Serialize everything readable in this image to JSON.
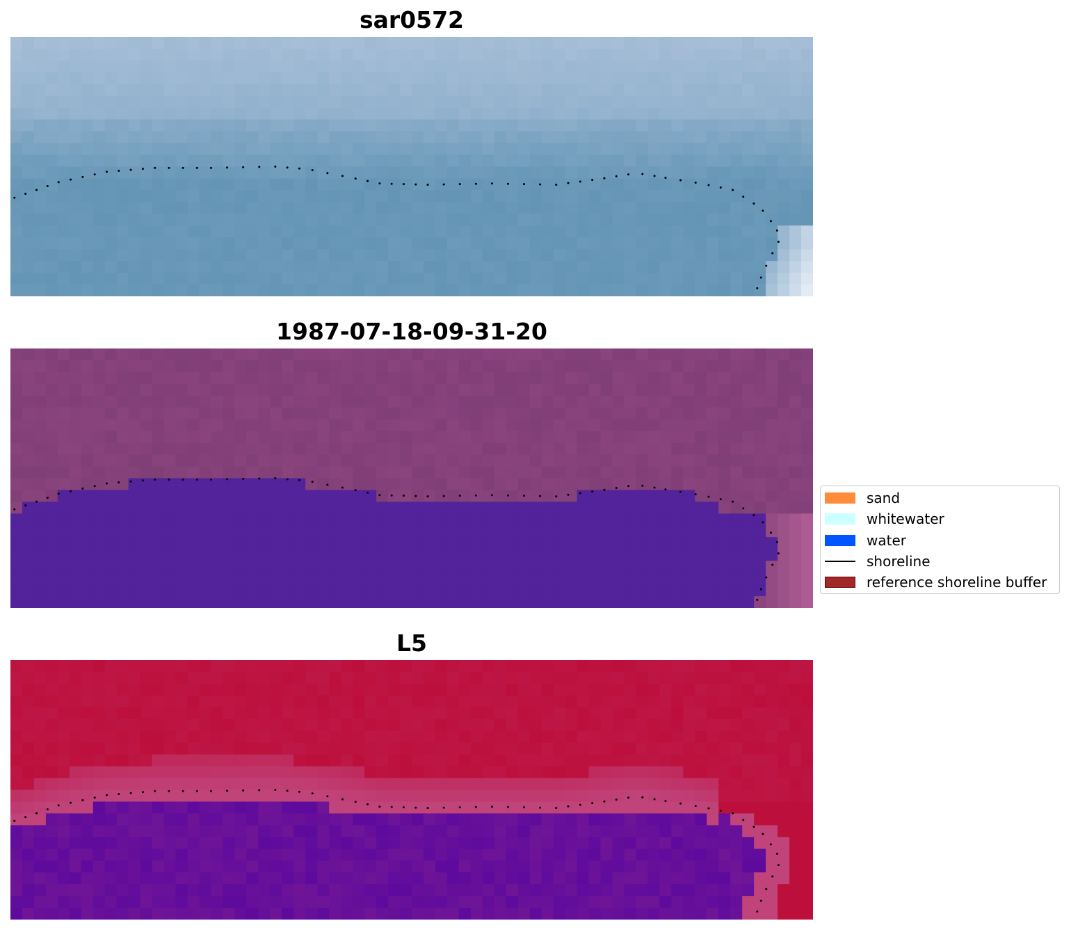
{
  "chart_data": {
    "type": "heatmap",
    "panels": [
      {
        "title": "sar0572",
        "kind": "rgb_composite",
        "palette": [
          "#8fb0cc",
          "#6495b5"
        ]
      },
      {
        "title": "1987-07-18-09-31-20",
        "kind": "classified_overlay",
        "palette": [
          "#8a447d",
          "#52239a"
        ]
      },
      {
        "title": "L5",
        "kind": "index_map",
        "palette": [
          "#bd0f3c",
          "#5d0a9d"
        ]
      }
    ],
    "legend": {
      "placement": "center-right",
      "items": [
        {
          "label": "sand",
          "type": "patch",
          "color": "#ff8c3a"
        },
        {
          "label": "whitewater",
          "type": "patch",
          "color": "#ccffff"
        },
        {
          "label": "water",
          "type": "patch",
          "color": "#0055ff"
        },
        {
          "label": "shoreline",
          "type": "line",
          "color": "#000000"
        },
        {
          "label": "reference shoreline buffer",
          "type": "patch",
          "color": "#a02828",
          "edge": "#700000"
        }
      ]
    },
    "shoreline": {
      "style": "dotted",
      "color": "#000000",
      "points": [
        [
          0.005,
          0.62
        ],
        [
          0.06,
          0.56
        ],
        [
          0.12,
          0.52
        ],
        [
          0.18,
          0.505
        ],
        [
          0.25,
          0.505
        ],
        [
          0.33,
          0.5
        ],
        [
          0.37,
          0.51
        ],
        [
          0.42,
          0.54
        ],
        [
          0.46,
          0.565
        ],
        [
          0.52,
          0.57
        ],
        [
          0.6,
          0.565
        ],
        [
          0.68,
          0.57
        ],
        [
          0.74,
          0.545
        ],
        [
          0.78,
          0.525
        ],
        [
          0.81,
          0.54
        ],
        [
          0.86,
          0.565
        ],
        [
          0.9,
          0.59
        ],
        [
          0.935,
          0.66
        ],
        [
          0.955,
          0.74
        ],
        [
          0.957,
          0.79
        ],
        [
          0.945,
          0.86
        ],
        [
          0.932,
          0.95
        ],
        [
          0.928,
          1.0
        ]
      ]
    }
  },
  "colors": {
    "sar_light": "#a9bfd8",
    "sar_mid": "#8fb0cc",
    "sar_water": "#6495b5",
    "sar_white": "#eef3fa",
    "cls_land": "#8a447d",
    "cls_dark": "#7a3b72",
    "cls_water": "#52239a",
    "cls_edge": "#c06a9f",
    "l5_land": "#bd0f3c",
    "l5_band": "#c0447a",
    "l5_water": "#5d0a9d"
  }
}
